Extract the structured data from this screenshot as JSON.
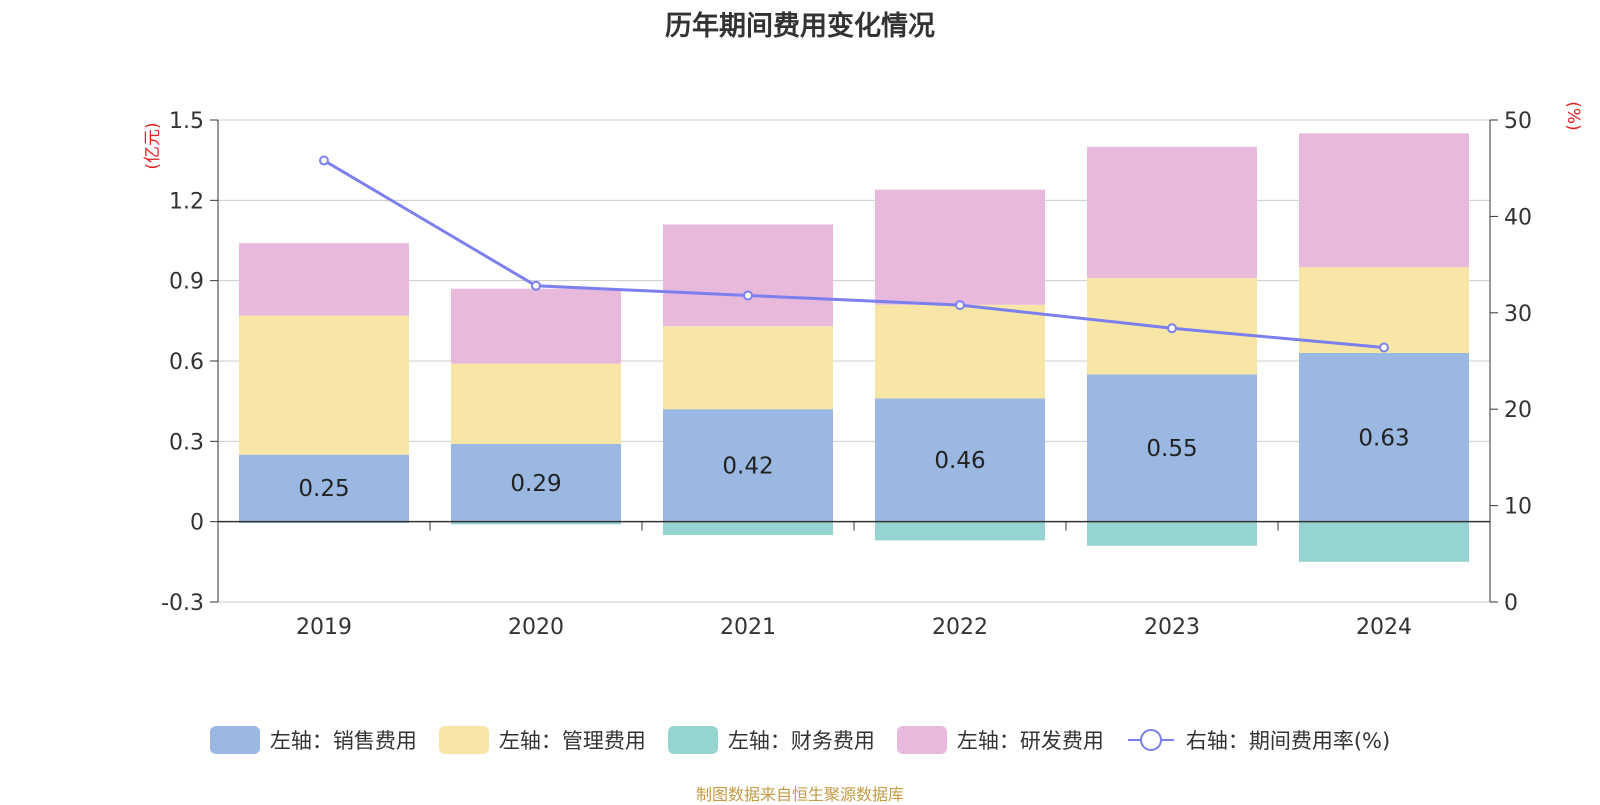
{
  "chart_data": {
    "type": "bar",
    "title": "历年期间费用变化情况",
    "categories": [
      "2019",
      "2020",
      "2021",
      "2022",
      "2023",
      "2024"
    ],
    "series": [
      {
        "name": "左轴：销售费用",
        "axis": "left",
        "color": "#9bb8e2",
        "values": [
          0.25,
          0.29,
          0.42,
          0.46,
          0.55,
          0.63
        ]
      },
      {
        "name": "左轴：管理费用",
        "axis": "left",
        "color": "#f8e6a6",
        "values": [
          0.52,
          0.3,
          0.31,
          0.35,
          0.36,
          0.32
        ]
      },
      {
        "name": "左轴：财务费用",
        "axis": "left",
        "color": "#96d4d2",
        "values": [
          -0.005,
          -0.01,
          -0.05,
          -0.07,
          -0.09,
          -0.15
        ]
      },
      {
        "name": "左轴：研发费用",
        "axis": "left",
        "color": "#e8b9da",
        "values": [
          0.27,
          0.28,
          0.38,
          0.43,
          0.49,
          0.5
        ]
      },
      {
        "name": "右轴：期间费用率(%)",
        "axis": "right",
        "type": "line",
        "color": "#7b80ee",
        "values": [
          45.8,
          32.8,
          31.8,
          30.8,
          28.4,
          26.4
        ]
      }
    ],
    "bar_labels": [
      "0.25",
      "0.29",
      "0.42",
      "0.46",
      "0.55",
      "0.63"
    ],
    "ylabel_left": "(亿元)",
    "ylabel_right": "(%)",
    "ylim_left": [
      -0.3,
      1.5
    ],
    "yticks_left": [
      "-0.3",
      "0",
      "0.3",
      "0.6",
      "0.9",
      "1.2",
      "1.5"
    ],
    "ylim_right": [
      0,
      50
    ],
    "yticks_right": [
      "0",
      "10",
      "20",
      "30",
      "40",
      "50"
    ],
    "legend_position": "bottom",
    "grid": true
  },
  "source": "制图数据来自恒生聚源数据库"
}
